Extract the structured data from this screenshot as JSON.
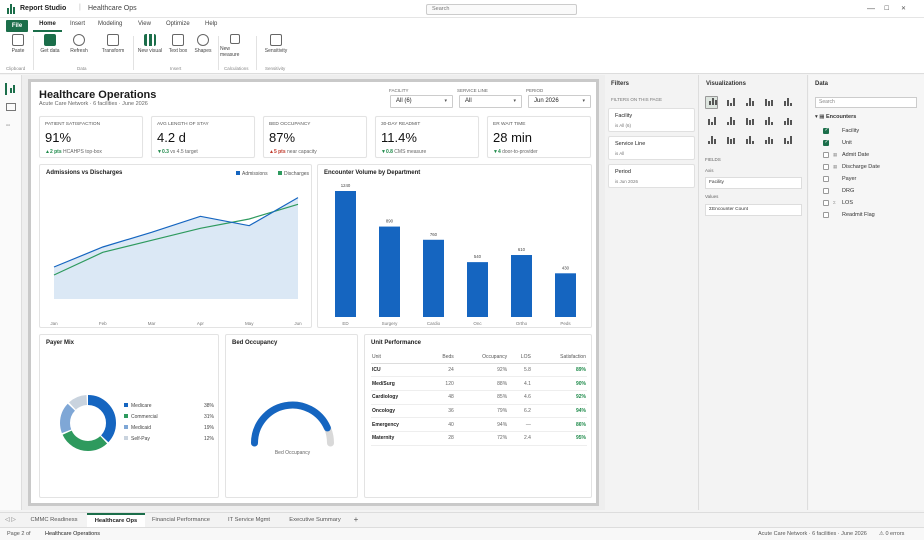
{
  "app": {
    "name": "Report Studio",
    "document": "Healthcare Ops",
    "search_placeholder": "Search",
    "win_min": "—",
    "win_max": "☐",
    "win_close": "✕"
  },
  "ribbon": {
    "tabs": [
      "File",
      "Home",
      "Insert",
      "Modeling",
      "View",
      "Optimize",
      "Help"
    ],
    "buttons": [
      "Paste",
      "Get data",
      "Refresh",
      "Transform",
      "New visual",
      "Text box",
      "Shapes",
      "New measure",
      "Sensitivity"
    ],
    "groups": [
      "Clipboard",
      "Data",
      "Insert",
      "Calculations",
      "Sensitivity"
    ]
  },
  "report": {
    "title": "Healthcare Operations",
    "subtitle": "Acute Care Network · 6 facilities · June 2026",
    "slicers": [
      {
        "label": "FACILITY",
        "value": "All (6)"
      },
      {
        "label": "SERVICE LINE",
        "value": "All"
      },
      {
        "label": "PERIOD",
        "value": "Jun 2026"
      }
    ],
    "kpis": [
      {
        "label": "PATIENT SATISFACTION",
        "value": "91%",
        "arrow": "▲",
        "delta": "2 pts",
        "note": " HCAHPS top-box",
        "trend": "up"
      },
      {
        "label": "AVG LENGTH OF STAY",
        "value": "4.2 d",
        "arrow": "▼",
        "delta": "0.3",
        "note": " vs 4.5 target",
        "trend": "up"
      },
      {
        "label": "BED OCCUPANCY",
        "value": "87%",
        "arrow": "▲",
        "delta": "5 pts",
        "note": " near capacity",
        "trend": "dn"
      },
      {
        "label": "30-DAY READMIT",
        "value": "11.4%",
        "arrow": "▼",
        "delta": "0.8",
        "note": " CMS measure",
        "trend": "up"
      },
      {
        "label": "ER WAIT TIME",
        "value": "28 min",
        "arrow": "▼",
        "delta": "4",
        "note": " door-to-provider",
        "trend": "up"
      }
    ]
  },
  "chart_data": [
    {
      "type": "area",
      "title": "Admissions vs Discharges",
      "categories": [
        "Jan",
        "Feb",
        "Mar",
        "Apr",
        "May",
        "Jun"
      ],
      "series": [
        {
          "name": "Admissions",
          "color": "#1565c0",
          "values": [
            1020,
            1095,
            1150,
            1210,
            1175,
            1280
          ]
        },
        {
          "name": "Discharges",
          "color": "#2e9a5e",
          "values": [
            990,
            1075,
            1120,
            1165,
            1200,
            1255
          ]
        }
      ],
      "ylim": [
        900,
        1320
      ],
      "legend": "top-right"
    },
    {
      "type": "bar",
      "title": "Encounter Volume by Department",
      "categories": [
        "ED",
        "Surgery",
        "Cardio",
        "Onc",
        "Ortho",
        "Peds"
      ],
      "values": [
        1240,
        890,
        760,
        540,
        610,
        430
      ],
      "color": "#1565c0",
      "ylim": [
        0,
        1240
      ]
    },
    {
      "type": "pie",
      "title": "Payer Mix",
      "labels": [
        "Medicare",
        "Commercial",
        "Medicaid",
        "Self-Pay"
      ],
      "values": [
        38,
        31,
        19,
        12
      ],
      "value_labels": [
        "38%",
        "31%",
        "19%",
        "12%"
      ],
      "colors": [
        "#1565c0",
        "#2e9a5e",
        "#7fa7d6",
        "#c9d3de"
      ]
    },
    {
      "type": "gauge",
      "title": "Bed Occupancy",
      "value": 87,
      "max": 100,
      "label": "Bed Occupancy",
      "color": "#1565c0"
    }
  ],
  "unit_table": {
    "title": "Unit Performance",
    "headers": [
      "Unit",
      "Beds",
      "Occupancy",
      "LOS",
      "Satisfaction"
    ],
    "rows": [
      [
        "ICU",
        "24",
        "92%",
        "5.8",
        "89%"
      ],
      [
        "Med/Surg",
        "120",
        "88%",
        "4.1",
        "90%"
      ],
      [
        "Cardiology",
        "48",
        "85%",
        "4.6",
        "92%"
      ],
      [
        "Oncology",
        "36",
        "79%",
        "6.2",
        "94%"
      ],
      [
        "Emergency",
        "40",
        "94%",
        "—",
        "86%"
      ],
      [
        "Maternity",
        "28",
        "72%",
        "2.4",
        "95%"
      ]
    ]
  },
  "filters": {
    "title": "Filters",
    "section": "FILTERS ON THIS PAGE",
    "items": [
      {
        "name": "Facility",
        "value": "is All (6)"
      },
      {
        "name": "Service Line",
        "value": "is All"
      },
      {
        "name": "Period",
        "value": "is Jun 2026"
      }
    ]
  },
  "visualizations": {
    "title": "Visualizations",
    "fields_label": "FIELDS",
    "axis_label": "Axis",
    "axis_value": "Facility",
    "values_label": "Values",
    "values_value": "ΣEncounter Count"
  },
  "data_pane": {
    "title": "Data",
    "search_placeholder": "Search",
    "table": "Encounters",
    "fields": [
      {
        "name": "Facility",
        "checked": true,
        "sigma": ""
      },
      {
        "name": "Unit",
        "checked": true,
        "sigma": ""
      },
      {
        "name": "Admit Date",
        "checked": false,
        "sigma": "▦"
      },
      {
        "name": "Discharge Date",
        "checked": false,
        "sigma": "▦"
      },
      {
        "name": "Payer",
        "checked": false,
        "sigma": ""
      },
      {
        "name": "DRG",
        "checked": false,
        "sigma": ""
      },
      {
        "name": "LOS",
        "checked": false,
        "sigma": "Σ"
      },
      {
        "name": "Readmit Flag",
        "checked": false,
        "sigma": ""
      }
    ]
  },
  "pages": {
    "tabs": [
      "CMMC Readiness",
      "Healthcare Ops",
      "Financial Performance",
      "IT Service Mgmt",
      "Executive Summary"
    ],
    "active": 1,
    "add": "+"
  },
  "status": {
    "page": "Page 2 of",
    "page_name": "Healthcare Operations",
    "right": "Acute Care Network · 6 facilities · June 2026",
    "errors": "⚠ 0 errors"
  }
}
